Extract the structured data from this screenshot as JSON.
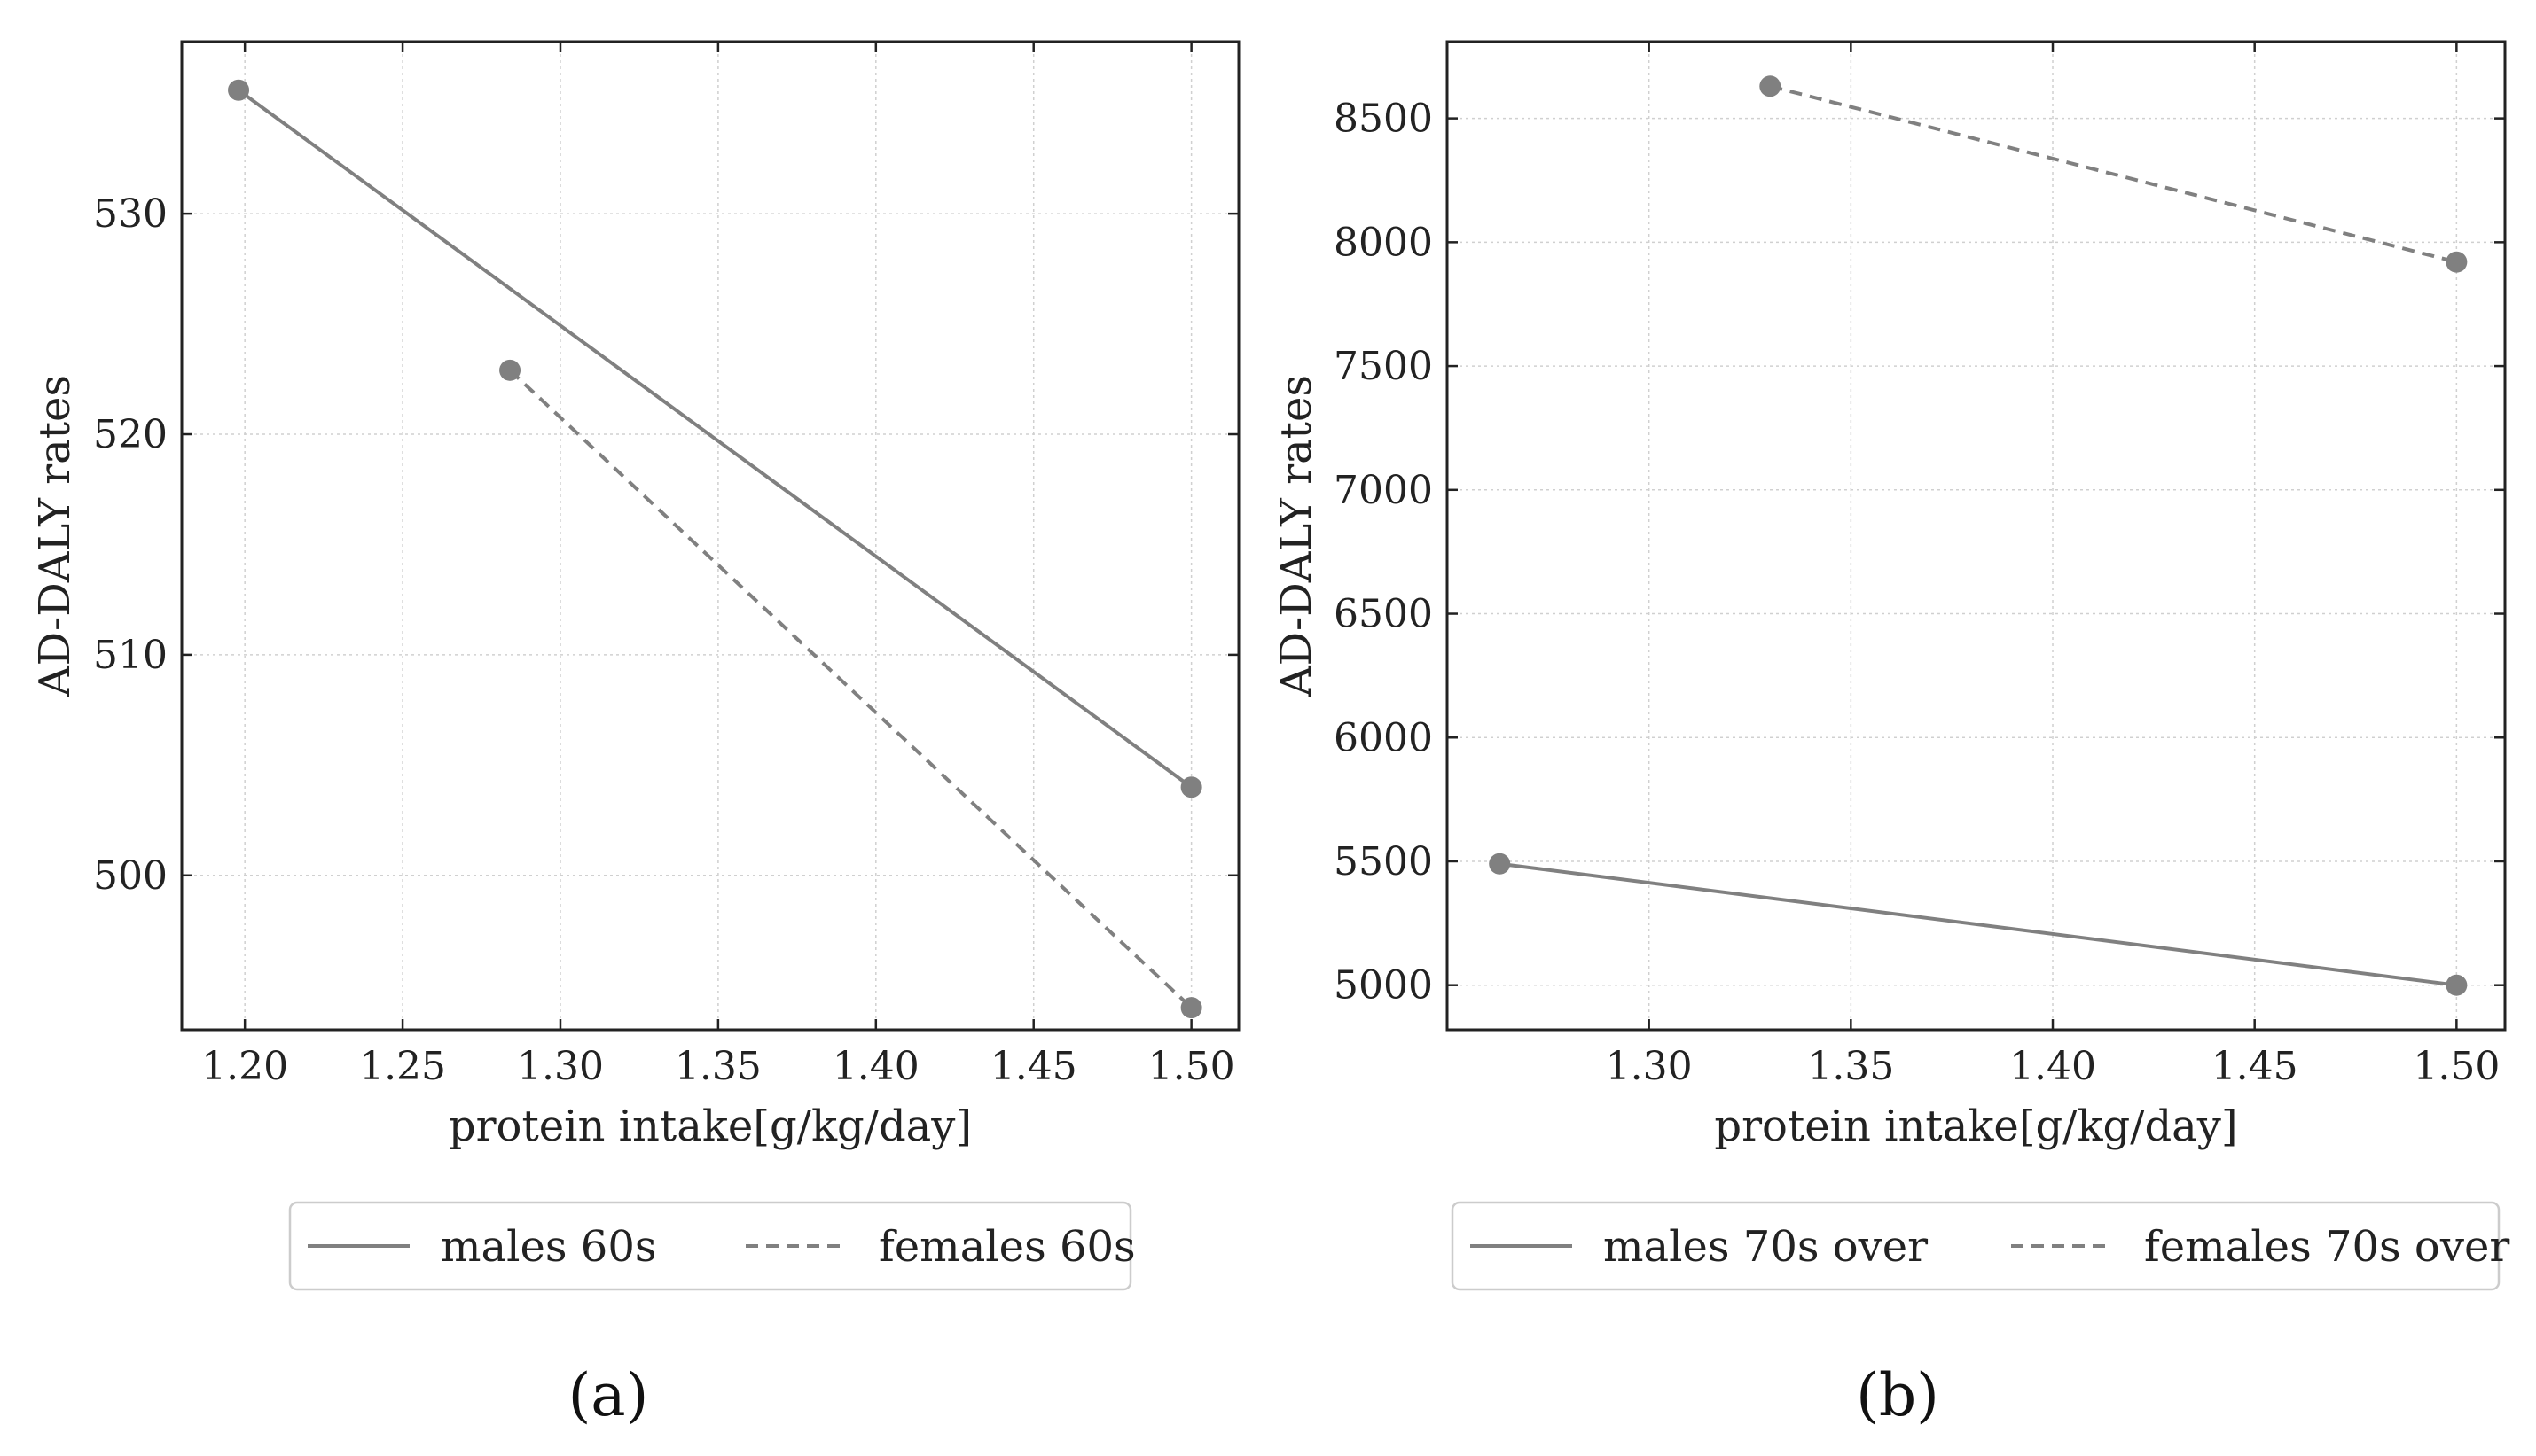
{
  "figure": {
    "colors": {
      "line": "#808080",
      "axis": "#222222",
      "grid": "#d0d0d0",
      "legend_border": "#cccccc"
    }
  },
  "chart_data": [
    {
      "type": "line",
      "panel_label": "(a)",
      "xlabel": "protein intake[g/kg/day]",
      "ylabel": "AD-DALY rates",
      "xlim": [
        1.18,
        1.515
      ],
      "ylim": [
        493,
        537.8
      ],
      "xticks": [
        1.2,
        1.25,
        1.3,
        1.35,
        1.4,
        1.45,
        1.5
      ],
      "xtick_labels": [
        "1.20",
        "1.25",
        "1.30",
        "1.35",
        "1.40",
        "1.45",
        "1.50"
      ],
      "yticks": [
        500,
        510,
        520,
        530
      ],
      "ytick_labels": [
        "500",
        "510",
        "520",
        "530"
      ],
      "grid": true,
      "legend_position": "bottom",
      "series": [
        {
          "name": "males 60s",
          "style": "solid",
          "x": [
            1.198,
            1.5
          ],
          "y": [
            535.6,
            504.0
          ]
        },
        {
          "name": "females 60s",
          "style": "dashed",
          "x": [
            1.284,
            1.5
          ],
          "y": [
            522.9,
            494.0
          ]
        }
      ]
    },
    {
      "type": "line",
      "panel_label": "(b)",
      "xlabel": "protein intake[g/kg/day]",
      "ylabel": "AD-DALY rates",
      "xlim": [
        1.25,
        1.512
      ],
      "ylim": [
        4820,
        8810
      ],
      "xticks": [
        1.3,
        1.35,
        1.4,
        1.45,
        1.5
      ],
      "xtick_labels": [
        "1.30",
        "1.35",
        "1.40",
        "1.45",
        "1.50"
      ],
      "yticks": [
        5000,
        5500,
        6000,
        6500,
        7000,
        7500,
        8000,
        8500
      ],
      "ytick_labels": [
        "5000",
        "5500",
        "6000",
        "6500",
        "7000",
        "7500",
        "8000",
        "8500"
      ],
      "grid": true,
      "legend_position": "bottom",
      "series": [
        {
          "name": "males 70s over",
          "style": "solid",
          "x": [
            1.263,
            1.5
          ],
          "y": [
            5490,
            5000
          ]
        },
        {
          "name": "females 70s over",
          "style": "dashed",
          "x": [
            1.33,
            1.5
          ],
          "y": [
            8630,
            7920
          ]
        }
      ]
    }
  ]
}
